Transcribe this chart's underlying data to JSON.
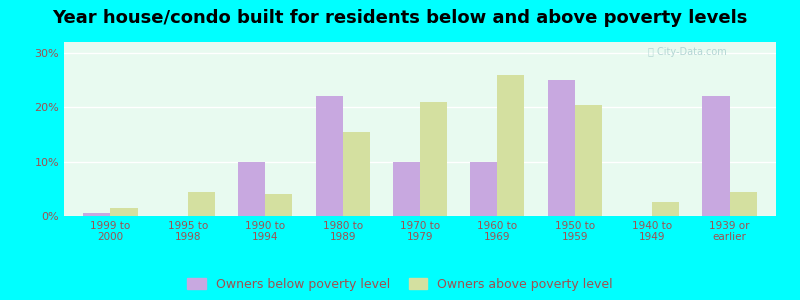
{
  "title": "Year house/condo built for residents below and above poverty levels",
  "categories": [
    "1999 to\n2000",
    "1995 to\n1998",
    "1990 to\n1994",
    "1980 to\n1989",
    "1970 to\n1979",
    "1960 to\n1969",
    "1950 to\n1959",
    "1940 to\n1949",
    "1939 or\nearlier"
  ],
  "below_poverty": [
    0.5,
    0.0,
    10.0,
    22.0,
    10.0,
    10.0,
    25.0,
    0.0,
    22.0
  ],
  "above_poverty": [
    1.5,
    4.5,
    4.0,
    15.5,
    21.0,
    26.0,
    20.5,
    2.5,
    4.5
  ],
  "below_color": "#c8a8e0",
  "above_color": "#d4e0a0",
  "background_color": "#e8faf0",
  "outer_background": "#00ffff",
  "ylim": [
    0,
    32
  ],
  "yticks": [
    0,
    10,
    20,
    30
  ],
  "ytick_labels": [
    "0%",
    "10%",
    "20%",
    "30%"
  ],
  "legend_below": "Owners below poverty level",
  "legend_above": "Owners above poverty level",
  "title_fontsize": 13,
  "bar_width": 0.35,
  "grid_color": "#ffffff",
  "tick_color": "#a05050"
}
